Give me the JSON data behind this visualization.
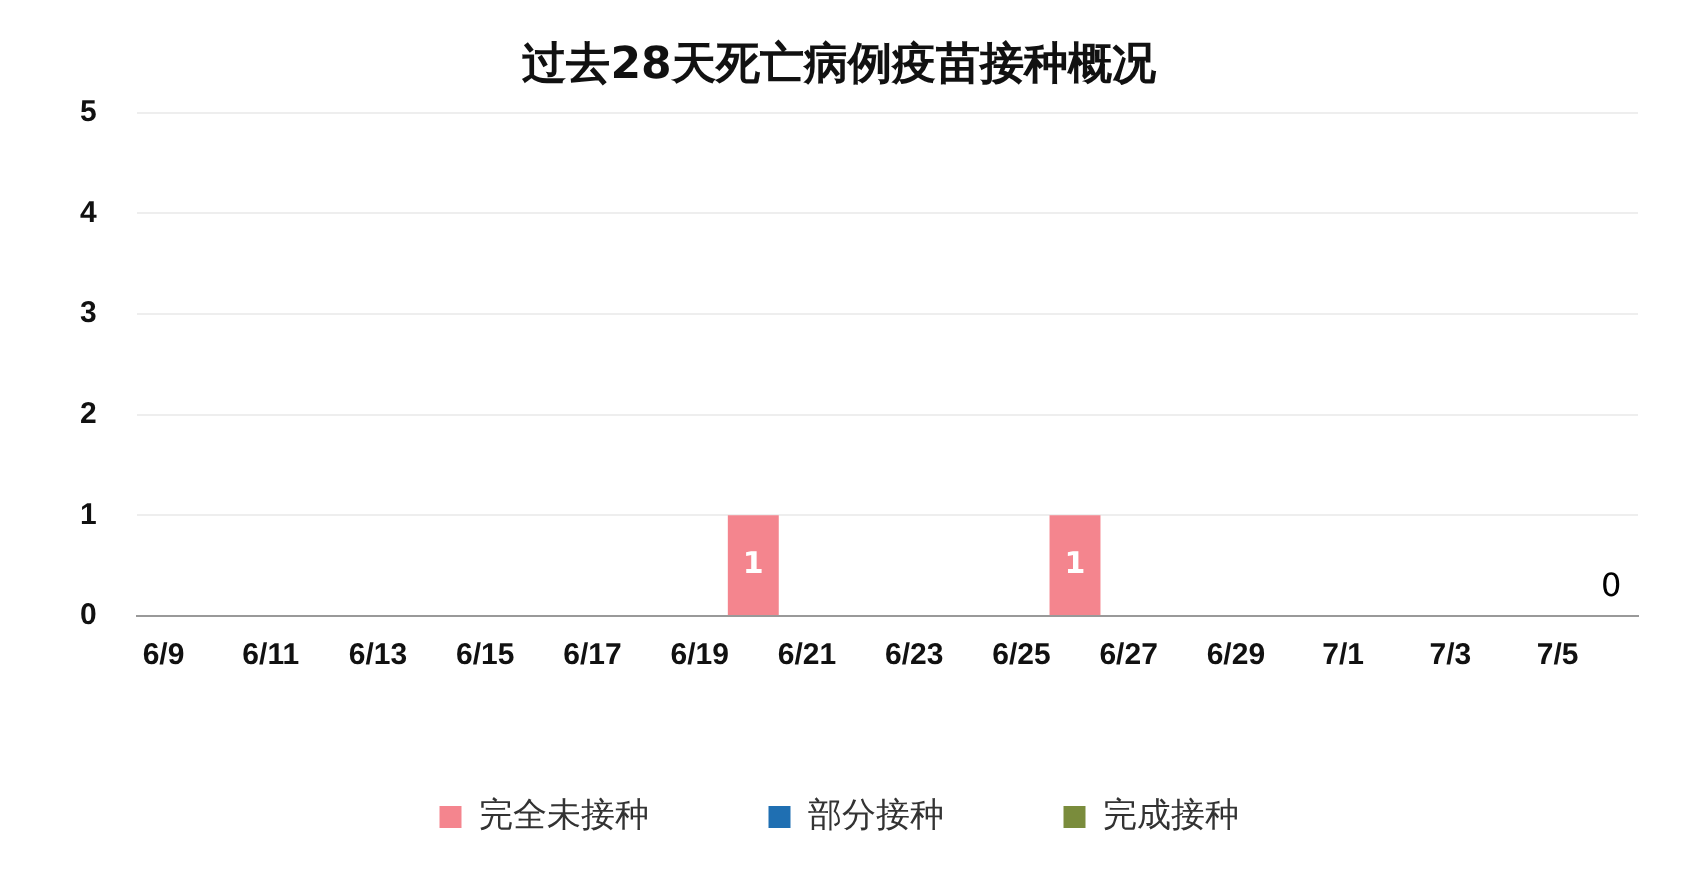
{
  "chart_data": {
    "type": "bar",
    "title": "过去28天死亡病例疫苗接种概况",
    "stacked": true,
    "categories": [
      "6/9",
      null,
      "6/11",
      null,
      "6/13",
      null,
      "6/15",
      null,
      "6/17",
      null,
      "6/19",
      null,
      "6/21",
      null,
      "6/23",
      null,
      "6/25",
      null,
      "6/27",
      null,
      "6/29",
      null,
      "7/1",
      null,
      "7/3",
      null,
      "7/5",
      null
    ],
    "series": [
      {
        "name": "完全未接种",
        "color": "#f4858e",
        "values": [
          0,
          0,
          0,
          0,
          0,
          0,
          0,
          0,
          0,
          0,
          0,
          1,
          0,
          0,
          0,
          0,
          0,
          1,
          0,
          0,
          0,
          0,
          0,
          0,
          0,
          0,
          0,
          0
        ],
        "value_labels": [
          null,
          null,
          null,
          null,
          null,
          null,
          null,
          null,
          null,
          null,
          null,
          "1",
          null,
          null,
          null,
          null,
          null,
          "1",
          null,
          null,
          null,
          null,
          null,
          null,
          null,
          null,
          null,
          "0"
        ]
      },
      {
        "name": "部分接种",
        "color": "#1f6fb2",
        "values": [
          0,
          0,
          0,
          0,
          0,
          0,
          0,
          0,
          0,
          0,
          0,
          0,
          0,
          0,
          0,
          0,
          0,
          0,
          0,
          0,
          0,
          0,
          0,
          0,
          0,
          0,
          0,
          0
        ]
      },
      {
        "name": "完成接种",
        "color": "#7a8c3c",
        "values": [
          0,
          0,
          0,
          0,
          0,
          0,
          0,
          0,
          0,
          0,
          0,
          0,
          0,
          0,
          0,
          0,
          0,
          0,
          0,
          0,
          0,
          0,
          0,
          0,
          0,
          0,
          0,
          0
        ]
      }
    ],
    "ylim": [
      0,
      5
    ],
    "yticks": [
      0,
      1,
      2,
      3,
      4,
      5
    ],
    "grid": "y",
    "legend": "bottom"
  }
}
